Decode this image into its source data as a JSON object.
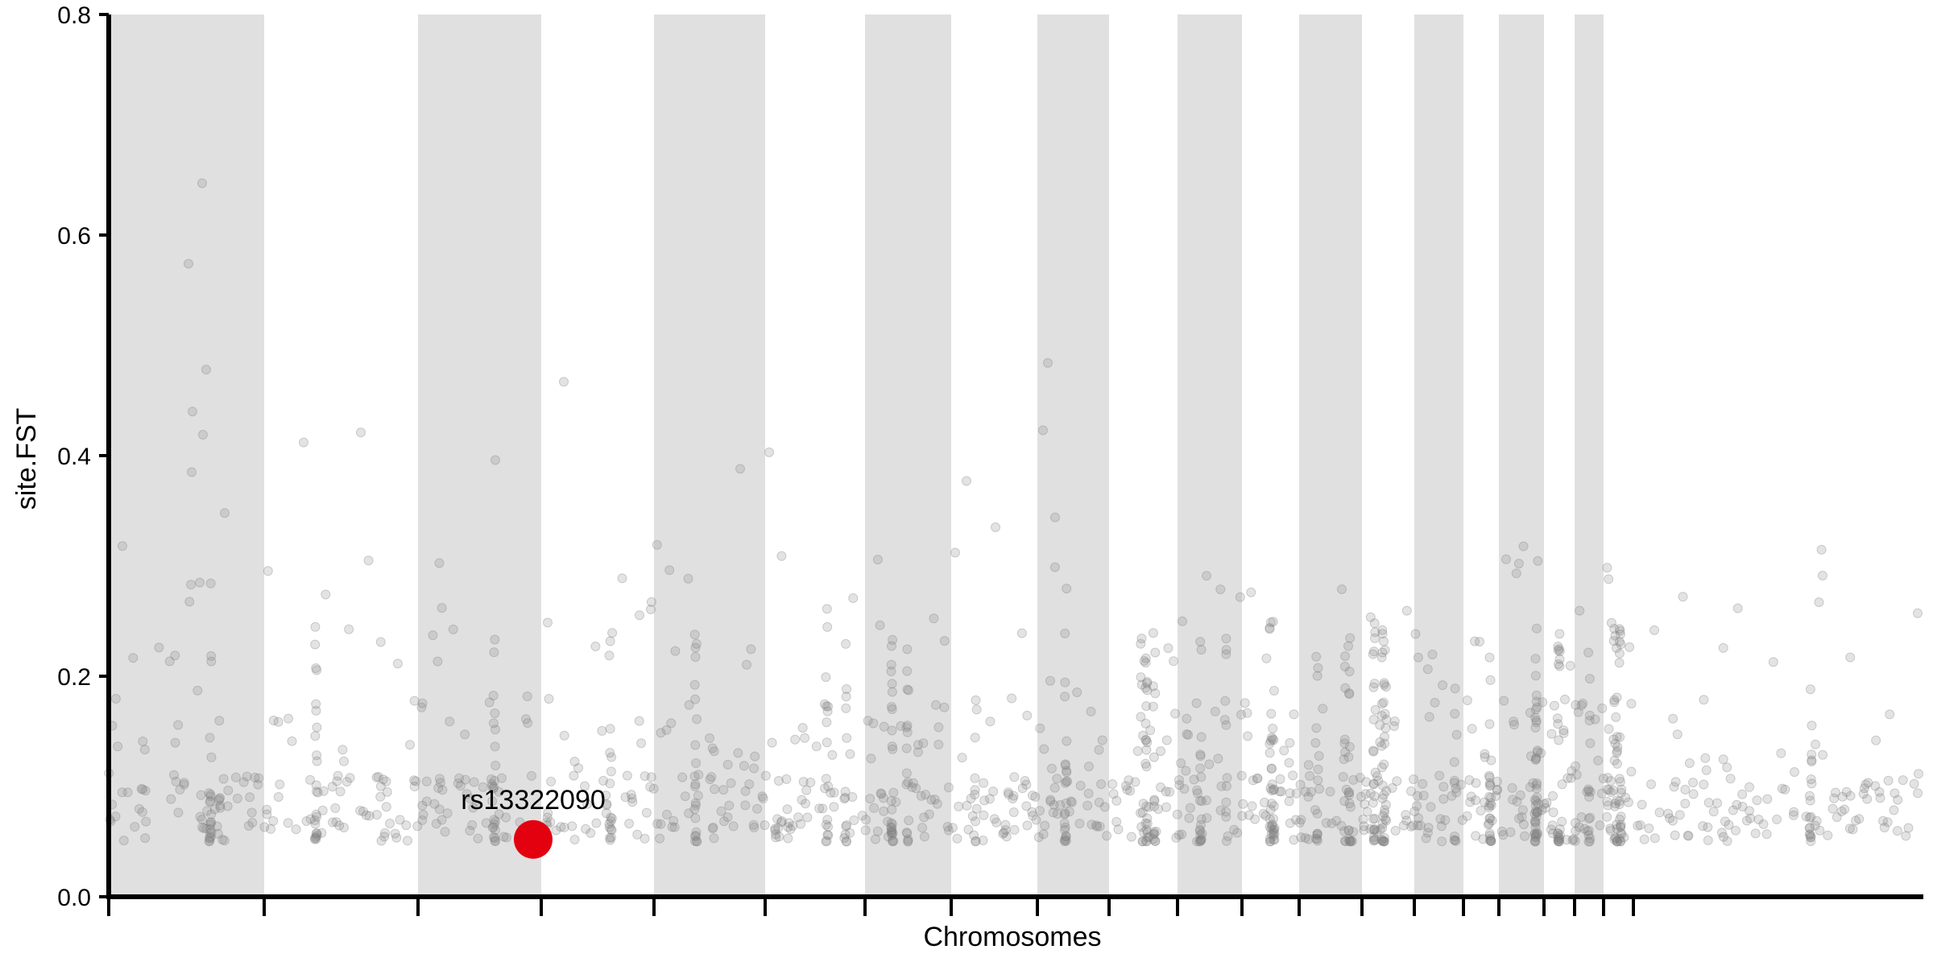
{
  "chart_data": {
    "type": "scatter",
    "title": "",
    "xlabel": "Chromosomes",
    "ylabel": "site.FST",
    "ylim": [
      0,
      0.8
    ],
    "y_ticks": [
      "0.0",
      "0.2",
      "0.4",
      "0.6",
      "0.8"
    ],
    "grid": false,
    "legend": "none",
    "colors": {
      "band": "#e0e0e0",
      "point": "#808080",
      "highlight": "#e3000f",
      "axis": "#000000"
    },
    "chromosome_boundaries": [
      0,
      193,
      384,
      537,
      677,
      815,
      939,
      1046,
      1153,
      1242,
      1327,
      1407,
      1478,
      1556,
      1621,
      1682,
      1726,
      1782,
      1820,
      1856,
      1893,
      2250
    ],
    "highlight": {
      "label": "rs13322090",
      "x": 527,
      "y": 0.052
    }
  }
}
